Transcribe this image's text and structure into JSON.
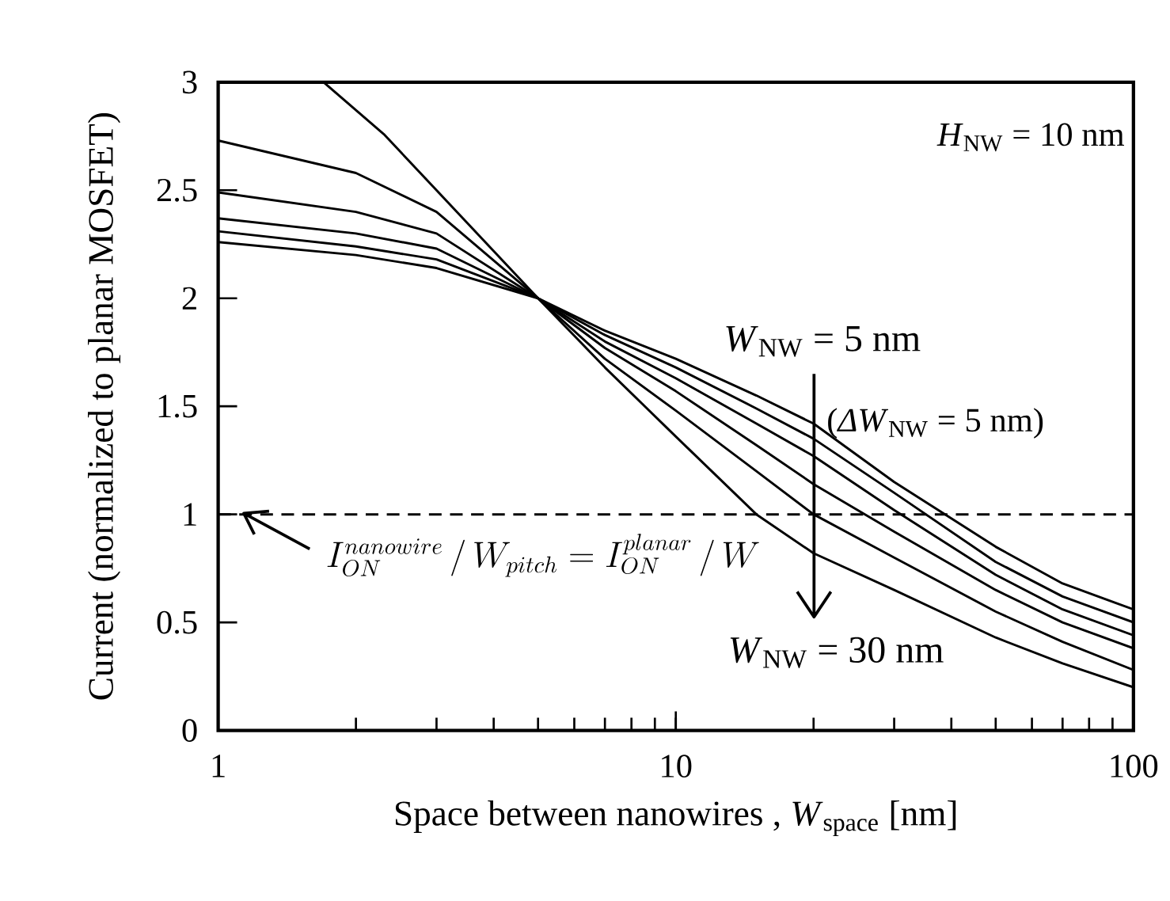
{
  "chart_data": {
    "type": "line",
    "xlabel": "Space between nanowires , *W*$_{space}$ [nm]",
    "ylabel": "Current (normalized to planar MOSFET)",
    "log": "x",
    "xlim": [
      1,
      100
    ],
    "ylim": [
      0,
      3
    ],
    "xticks": [
      1,
      10,
      100
    ],
    "yticks": [
      0,
      0.5,
      1,
      1.5,
      2,
      2.5,
      3
    ],
    "marker": "none",
    "line_style": "solid",
    "x": [
      1,
      2,
      3,
      5,
      7,
      10,
      15,
      20,
      30,
      50,
      70,
      100
    ],
    "series": [
      {
        "name": "*W*$_{NW}$ = 5 nm",
        "color": "#000000",
        "values": [
          2.26,
          2.2,
          2.14,
          2.0,
          1.85,
          1.72,
          1.55,
          1.42,
          1.15,
          0.85,
          0.68,
          0.56
        ]
      },
      {
        "color": "#000000",
        "values": [
          2.31,
          2.24,
          2.18,
          2.0,
          1.83,
          1.68,
          1.49,
          1.35,
          1.1,
          0.78,
          0.62,
          0.5
        ]
      },
      {
        "color": "#000000",
        "values": [
          2.37,
          2.3,
          2.23,
          2.0,
          1.8,
          1.63,
          1.42,
          1.27,
          1.02,
          0.72,
          0.56,
          0.44
        ]
      },
      {
        "color": "#000000",
        "values": [
          2.49,
          2.4,
          2.3,
          2.0,
          1.77,
          1.57,
          1.32,
          1.14,
          0.92,
          0.65,
          0.5,
          0.38
        ]
      },
      {
        "color": "#000000",
        "values": [
          2.73,
          2.58,
          2.4,
          2.0,
          1.72,
          1.48,
          1.2,
          1.0,
          0.8,
          0.55,
          0.41,
          0.28
        ]
      },
      {
        "name": "*W*$_{NW}$ = 30 nm",
        "color": "#000000",
        "x": [
          1.7,
          2.3,
          3,
          5,
          7,
          10,
          15,
          20,
          30,
          50,
          70,
          100
        ],
        "values": [
          3.0,
          2.76,
          2.5,
          2.0,
          1.68,
          1.36,
          1.0,
          0.82,
          0.65,
          0.43,
          0.31,
          0.2
        ]
      }
    ],
    "ref_lines": [
      {
        "axis": "y",
        "value": 1,
        "line_style": "dashed",
        "color": "#000000",
        "label": "I_{ON}^{nanowire} \\,/\\, W_{pitch} = I_{ON}^{planar} \\,/\\, W"
      }
    ],
    "annotations": [
      "*H*$_{NW}$ = 10 nm",
      "(*ΔW*$_{NW}$ = 5 nm)"
    ]
  }
}
